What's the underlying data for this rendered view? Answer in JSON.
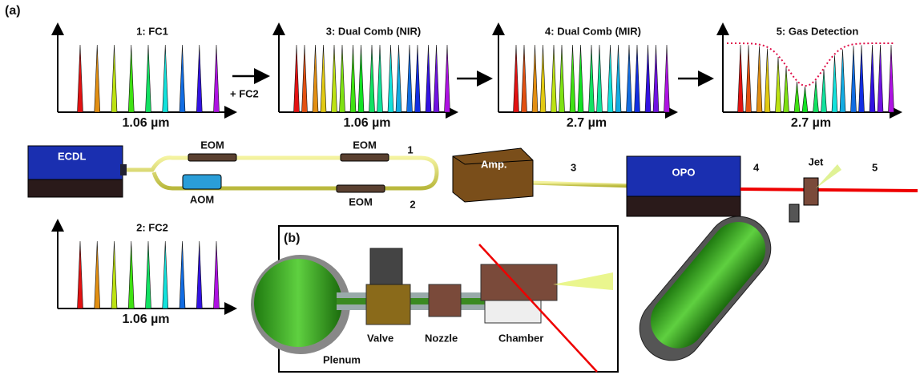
{
  "figure_label": "(a)",
  "spectra": [
    {
      "title": "1: FC1",
      "axis_label": "1.06 µm"
    },
    {
      "title": "2: FC2",
      "axis_label": "1.06 µm"
    },
    {
      "title": "3: Dual Comb (NIR)",
      "axis_label": "1.06 µm"
    },
    {
      "title": "4: Dual Comb (MIR)",
      "axis_label": "2.7 µm"
    },
    {
      "title": "5: Gas Detection",
      "axis_label": "2.7 µm"
    }
  ],
  "combine_label": "+ FC2",
  "components": {
    "ecdl": "ECDL",
    "eom_top_left": "EOM",
    "eom_top_right": "EOM",
    "aom": "AOM",
    "eom_bottom": "EOM",
    "amplifier": "Amp.",
    "opo": "OPO",
    "jet": "Jet"
  },
  "path_labels": [
    "1",
    "2",
    "3",
    "4",
    "5"
  ],
  "inset": {
    "label": "(b)",
    "parts": {
      "plenum": "Plenum",
      "valve": "Valve",
      "nozzle": "Nozzle",
      "chamber": "Chamber"
    }
  }
}
